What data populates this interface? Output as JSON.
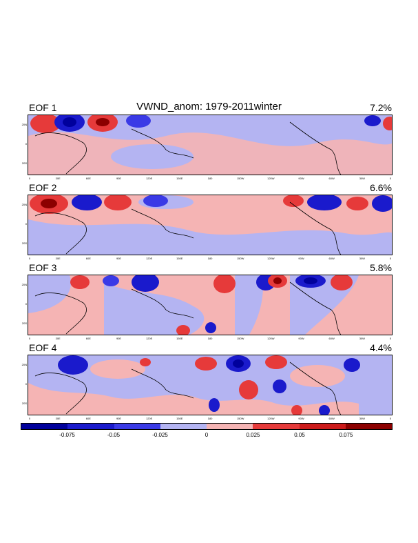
{
  "figure": {
    "title": "VWND_anom: 1979-2011winter",
    "panels": [
      {
        "label": "EOF 1",
        "variance": "7.2%"
      },
      {
        "label": "EOF 2",
        "variance": "6.6%"
      },
      {
        "label": "EOF 3",
        "variance": "5.8%"
      },
      {
        "label": "EOF 4",
        "variance": "4.4%"
      }
    ],
    "lon_ticks": [
      "0",
      "30E",
      "60E",
      "90E",
      "120E",
      "150E",
      "180",
      "150W",
      "120W",
      "90W",
      "60W",
      "30W",
      "0"
    ],
    "lat_ticks": [
      "20N",
      "0",
      "20S"
    ]
  },
  "colorbar": {
    "labels": [
      "-0.075",
      "-0.05",
      "-0.025",
      "0",
      "0.025",
      "0.05",
      "0.075"
    ],
    "colors": [
      "#00009c",
      "#1a1acc",
      "#3a3ae6",
      "#b4b4f2",
      "#f5b4b4",
      "#e63a3a",
      "#cc1a1a",
      "#8c0000"
    ]
  }
}
